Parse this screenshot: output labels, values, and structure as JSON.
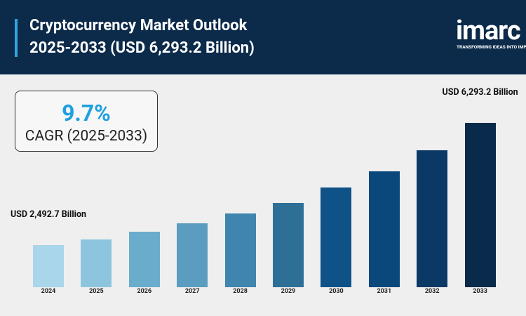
{
  "logo": {
    "name": "imarc",
    "tagline": "TRANSFORMING IDEAS INTO IMPACT"
  },
  "chart_data": {
    "type": "bar",
    "title": [
      "Cryptocurrency Market Outlook",
      "2025-2033 (USD 6,293.2 Billion)"
    ],
    "cagr": {
      "value": "9.7%",
      "label": "CAGR (2025-2033)"
    },
    "categories": [
      "2024",
      "2025",
      "2026",
      "2027",
      "2028",
      "2029",
      "2030",
      "2031",
      "2032",
      "2033"
    ],
    "values": [
      2492.7,
      2667,
      2907,
      3170,
      3475,
      3803,
      4283,
      4786,
      5441,
      6293.2
    ],
    "value_labels": [
      "USD 2,492.7 Billion",
      null,
      null,
      null,
      null,
      null,
      null,
      null,
      null,
      "USD 6,293.2 Billion"
    ],
    "colors": [
      "#a9d6ea",
      "#8ec5de",
      "#6aaccc",
      "#5a9dc0",
      "#3f85ad",
      "#2e6f98",
      "#0f5288",
      "#0a477a",
      "#0a3965",
      "#0a2a4c"
    ]
  }
}
